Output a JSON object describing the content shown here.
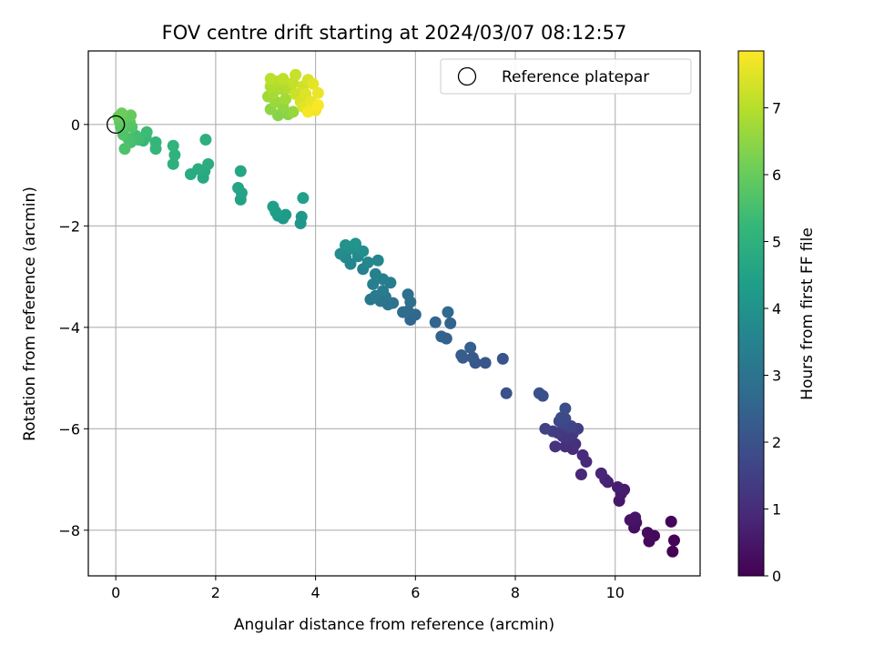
{
  "chart_data": {
    "type": "scatter",
    "title": "FOV centre drift starting at 2024/03/07 08:12:57",
    "xlabel": "Angular distance from reference (arcmin)",
    "ylabel": "Rotation from reference (arcmin)",
    "xlim": [
      -0.55,
      11.7
    ],
    "ylim": [
      -8.9,
      1.45
    ],
    "xticks": [
      0,
      2,
      4,
      6,
      8,
      10
    ],
    "yticks": [
      -8,
      -6,
      -4,
      -2,
      0
    ],
    "grid": true,
    "legend": {
      "position": "top-right",
      "entries": [
        "Reference platepar"
      ]
    },
    "reference_point": {
      "x": 0,
      "y": 0
    },
    "colorbar": {
      "label": "Hours from first FF file",
      "colormap": "viridis",
      "range": [
        0,
        7.85
      ],
      "ticks": [
        0,
        1,
        2,
        3,
        4,
        5,
        6,
        7
      ]
    },
    "points": [
      {
        "x": 11.15,
        "y": -8.42,
        "t": 0.0
      },
      {
        "x": 11.18,
        "y": -8.2,
        "t": 0.05
      },
      {
        "x": 11.12,
        "y": -7.83,
        "t": 0.1
      },
      {
        "x": 10.68,
        "y": -8.22,
        "t": 0.15
      },
      {
        "x": 10.78,
        "y": -8.11,
        "t": 0.2
      },
      {
        "x": 10.65,
        "y": -8.05,
        "t": 0.25
      },
      {
        "x": 10.38,
        "y": -7.95,
        "t": 0.3
      },
      {
        "x": 10.42,
        "y": -7.85,
        "t": 0.35
      },
      {
        "x": 10.3,
        "y": -7.8,
        "t": 0.4
      },
      {
        "x": 10.4,
        "y": -7.75,
        "t": 0.45
      },
      {
        "x": 10.08,
        "y": -7.42,
        "t": 0.5
      },
      {
        "x": 10.12,
        "y": -7.28,
        "t": 0.55
      },
      {
        "x": 10.18,
        "y": -7.2,
        "t": 0.6
      },
      {
        "x": 10.05,
        "y": -7.15,
        "t": 0.65
      },
      {
        "x": 9.85,
        "y": -7.05,
        "t": 0.7
      },
      {
        "x": 9.8,
        "y": -7.0,
        "t": 0.75
      },
      {
        "x": 9.72,
        "y": -6.88,
        "t": 0.8
      },
      {
        "x": 9.32,
        "y": -6.9,
        "t": 0.85
      },
      {
        "x": 9.42,
        "y": -6.65,
        "t": 0.9
      },
      {
        "x": 9.35,
        "y": -6.52,
        "t": 0.95
      },
      {
        "x": 9.15,
        "y": -6.4,
        "t": 1.0
      },
      {
        "x": 9.0,
        "y": -6.35,
        "t": 1.05
      },
      {
        "x": 9.2,
        "y": -6.3,
        "t": 1.1
      },
      {
        "x": 8.8,
        "y": -6.35,
        "t": 1.15
      },
      {
        "x": 9.05,
        "y": -6.2,
        "t": 1.2
      },
      {
        "x": 8.95,
        "y": -6.15,
        "t": 1.25
      },
      {
        "x": 9.15,
        "y": -6.1,
        "t": 1.3
      },
      {
        "x": 8.85,
        "y": -6.08,
        "t": 1.35
      },
      {
        "x": 8.75,
        "y": -6.05,
        "t": 1.4
      },
      {
        "x": 9.25,
        "y": -6.0,
        "t": 1.45
      },
      {
        "x": 9.05,
        "y": -5.98,
        "t": 1.5
      },
      {
        "x": 8.6,
        "y": -6.0,
        "t": 1.55
      },
      {
        "x": 9.12,
        "y": -5.95,
        "t": 1.6
      },
      {
        "x": 8.95,
        "y": -5.9,
        "t": 1.65
      },
      {
        "x": 8.88,
        "y": -5.85,
        "t": 1.7
      },
      {
        "x": 9.0,
        "y": -5.8,
        "t": 1.75
      },
      {
        "x": 8.92,
        "y": -5.78,
        "t": 1.8
      },
      {
        "x": 9.0,
        "y": -5.6,
        "t": 1.85
      },
      {
        "x": 8.55,
        "y": -5.35,
        "t": 1.9
      },
      {
        "x": 8.48,
        "y": -5.3,
        "t": 1.95
      },
      {
        "x": 7.82,
        "y": -5.3,
        "t": 2.0
      },
      {
        "x": 7.75,
        "y": -4.62,
        "t": 2.05
      },
      {
        "x": 7.4,
        "y": -4.7,
        "t": 2.1
      },
      {
        "x": 7.2,
        "y": -4.7,
        "t": 2.15
      },
      {
        "x": 7.15,
        "y": -4.6,
        "t": 2.2
      },
      {
        "x": 6.95,
        "y": -4.6,
        "t": 2.25
      },
      {
        "x": 6.92,
        "y": -4.55,
        "t": 2.3
      },
      {
        "x": 7.1,
        "y": -4.4,
        "t": 2.35
      },
      {
        "x": 6.62,
        "y": -4.22,
        "t": 2.4
      },
      {
        "x": 6.52,
        "y": -4.18,
        "t": 2.45
      },
      {
        "x": 6.7,
        "y": -3.92,
        "t": 2.5
      },
      {
        "x": 6.4,
        "y": -3.9,
        "t": 2.55
      },
      {
        "x": 5.9,
        "y": -3.85,
        "t": 2.6
      },
      {
        "x": 6.0,
        "y": -3.75,
        "t": 2.65
      },
      {
        "x": 6.65,
        "y": -3.7,
        "t": 2.7
      },
      {
        "x": 5.85,
        "y": -3.68,
        "t": 2.75
      },
      {
        "x": 5.75,
        "y": -3.7,
        "t": 2.8
      },
      {
        "x": 5.9,
        "y": -3.5,
        "t": 2.85
      },
      {
        "x": 5.85,
        "y": -3.35,
        "t": 2.9
      },
      {
        "x": 5.55,
        "y": -3.52,
        "t": 2.95
      },
      {
        "x": 5.45,
        "y": -3.55,
        "t": 3.0
      },
      {
        "x": 5.3,
        "y": -3.48,
        "t": 3.05
      },
      {
        "x": 5.4,
        "y": -3.4,
        "t": 3.1
      },
      {
        "x": 5.1,
        "y": -3.45,
        "t": 3.15
      },
      {
        "x": 5.2,
        "y": -3.38,
        "t": 3.2
      },
      {
        "x": 5.35,
        "y": -3.28,
        "t": 3.25
      },
      {
        "x": 5.5,
        "y": -3.12,
        "t": 3.3
      },
      {
        "x": 5.15,
        "y": -3.15,
        "t": 3.35
      },
      {
        "x": 5.35,
        "y": -3.05,
        "t": 3.4
      },
      {
        "x": 5.2,
        "y": -2.95,
        "t": 3.45
      },
      {
        "x": 4.95,
        "y": -2.85,
        "t": 3.5
      },
      {
        "x": 4.7,
        "y": -2.75,
        "t": 3.55
      },
      {
        "x": 5.05,
        "y": -2.72,
        "t": 3.6
      },
      {
        "x": 5.25,
        "y": -2.68,
        "t": 3.65
      },
      {
        "x": 4.6,
        "y": -2.62,
        "t": 3.7
      },
      {
        "x": 4.85,
        "y": -2.6,
        "t": 3.75
      },
      {
        "x": 4.5,
        "y": -2.55,
        "t": 3.8
      },
      {
        "x": 4.95,
        "y": -2.5,
        "t": 3.85
      },
      {
        "x": 4.7,
        "y": -2.45,
        "t": 3.9
      },
      {
        "x": 4.8,
        "y": -2.4,
        "t": 3.95
      },
      {
        "x": 4.6,
        "y": -2.38,
        "t": 4.0
      },
      {
        "x": 4.8,
        "y": -2.35,
        "t": 4.05
      },
      {
        "x": 3.7,
        "y": -1.95,
        "t": 4.1
      },
      {
        "x": 3.72,
        "y": -1.82,
        "t": 4.15
      },
      {
        "x": 3.35,
        "y": -1.85,
        "t": 4.2
      },
      {
        "x": 3.25,
        "y": -1.8,
        "t": 4.25
      },
      {
        "x": 3.4,
        "y": -1.78,
        "t": 4.3
      },
      {
        "x": 3.2,
        "y": -1.72,
        "t": 4.35
      },
      {
        "x": 3.15,
        "y": -1.62,
        "t": 4.4
      },
      {
        "x": 3.75,
        "y": -1.45,
        "t": 4.45
      },
      {
        "x": 2.5,
        "y": -1.48,
        "t": 4.5
      },
      {
        "x": 2.52,
        "y": -1.35,
        "t": 4.55
      },
      {
        "x": 2.45,
        "y": -1.25,
        "t": 4.6
      },
      {
        "x": 2.5,
        "y": -0.92,
        "t": 4.65
      },
      {
        "x": 1.75,
        "y": -1.05,
        "t": 4.7
      },
      {
        "x": 1.78,
        "y": -0.92,
        "t": 4.75
      },
      {
        "x": 1.5,
        "y": -0.98,
        "t": 4.8
      },
      {
        "x": 1.65,
        "y": -0.88,
        "t": 4.85
      },
      {
        "x": 1.85,
        "y": -0.78,
        "t": 4.9
      },
      {
        "x": 1.8,
        "y": -0.3,
        "t": 4.95
      },
      {
        "x": 1.15,
        "y": -0.78,
        "t": 5.0
      },
      {
        "x": 1.18,
        "y": -0.6,
        "t": 5.05
      },
      {
        "x": 1.15,
        "y": -0.42,
        "t": 5.1
      },
      {
        "x": 0.8,
        "y": -0.48,
        "t": 5.15
      },
      {
        "x": 0.8,
        "y": -0.35,
        "t": 5.2
      },
      {
        "x": 0.55,
        "y": -0.32,
        "t": 5.25
      },
      {
        "x": 0.6,
        "y": -0.25,
        "t": 5.3
      },
      {
        "x": 0.62,
        "y": -0.15,
        "t": 5.35
      },
      {
        "x": 0.45,
        "y": -0.3,
        "t": 5.4
      },
      {
        "x": 0.4,
        "y": -0.22,
        "t": 5.45
      },
      {
        "x": 0.3,
        "y": -0.35,
        "t": 5.5
      },
      {
        "x": 0.25,
        "y": -0.28,
        "t": 5.55
      },
      {
        "x": 0.18,
        "y": -0.48,
        "t": 5.6
      },
      {
        "x": 0.15,
        "y": -0.2,
        "t": 5.65
      },
      {
        "x": 0.32,
        "y": -0.05,
        "t": 5.7
      },
      {
        "x": 0.28,
        "y": 0.05,
        "t": 5.75
      },
      {
        "x": 0.1,
        "y": -0.05,
        "t": 5.8
      },
      {
        "x": 0.08,
        "y": 0.05,
        "t": 5.85
      },
      {
        "x": 0.15,
        "y": 0.1,
        "t": 5.9
      },
      {
        "x": 0.3,
        "y": 0.18,
        "t": 5.95
      },
      {
        "x": 0.05,
        "y": 0.15,
        "t": 6.0
      },
      {
        "x": 0.12,
        "y": 0.22,
        "t": 6.05
      },
      {
        "x": 3.25,
        "y": 0.18,
        "t": 6.4
      },
      {
        "x": 3.45,
        "y": 0.2,
        "t": 6.45
      },
      {
        "x": 3.1,
        "y": 0.3,
        "t": 6.5
      },
      {
        "x": 3.35,
        "y": 0.35,
        "t": 6.55
      },
      {
        "x": 3.55,
        "y": 0.25,
        "t": 6.6
      },
      {
        "x": 3.2,
        "y": 0.45,
        "t": 6.65
      },
      {
        "x": 3.05,
        "y": 0.55,
        "t": 6.7
      },
      {
        "x": 3.4,
        "y": 0.5,
        "t": 6.75
      },
      {
        "x": 3.15,
        "y": 0.62,
        "t": 6.8
      },
      {
        "x": 3.3,
        "y": 0.7,
        "t": 6.85
      },
      {
        "x": 3.1,
        "y": 0.75,
        "t": 6.9
      },
      {
        "x": 3.45,
        "y": 0.72,
        "t": 6.95
      },
      {
        "x": 3.25,
        "y": 0.85,
        "t": 7.0
      },
      {
        "x": 3.1,
        "y": 0.9,
        "t": 7.05
      },
      {
        "x": 3.35,
        "y": 0.9,
        "t": 7.1
      },
      {
        "x": 3.55,
        "y": 0.82,
        "t": 7.15
      },
      {
        "x": 3.6,
        "y": 0.98,
        "t": 7.2
      },
      {
        "x": 3.6,
        "y": 0.6,
        "t": 7.25
      },
      {
        "x": 3.75,
        "y": 0.75,
        "t": 7.3
      },
      {
        "x": 3.7,
        "y": 0.45,
        "t": 7.35
      },
      {
        "x": 3.85,
        "y": 0.88,
        "t": 7.4
      },
      {
        "x": 3.8,
        "y": 0.6,
        "t": 7.45
      },
      {
        "x": 3.75,
        "y": 0.35,
        "t": 7.5
      },
      {
        "x": 3.95,
        "y": 0.8,
        "t": 7.55
      },
      {
        "x": 3.9,
        "y": 0.45,
        "t": 7.6
      },
      {
        "x": 4.05,
        "y": 0.62,
        "t": 7.65
      },
      {
        "x": 4.0,
        "y": 0.28,
        "t": 7.7
      },
      {
        "x": 3.85,
        "y": 0.25,
        "t": 7.75
      },
      {
        "x": 4.05,
        "y": 0.38,
        "t": 7.8
      }
    ]
  },
  "colors": {
    "viridis": [
      "#440154",
      "#482878",
      "#3e4989",
      "#31688e",
      "#26828e",
      "#1f9e89",
      "#35b779",
      "#6ece58",
      "#b5de2b",
      "#fde725"
    ],
    "grid": "#b0b0b0"
  }
}
